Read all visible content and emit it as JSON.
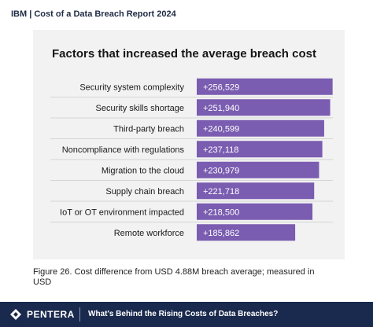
{
  "header": {
    "text": "IBM | Cost of a Data Breach Report 2024"
  },
  "chart_data": {
    "type": "bar",
    "orientation": "horizontal",
    "title": "Factors that increased the average breach cost",
    "categories": [
      "Security system complexity",
      "Security skills shortage",
      "Third-party breach",
      "Noncompliance with regulations",
      "Migration to the cloud",
      "Supply chain breach",
      "IoT or OT environment impacted",
      "Remote workforce"
    ],
    "values": [
      256529,
      251940,
      240599,
      237118,
      230979,
      221718,
      218500,
      185862
    ],
    "data_labels": [
      "+256,529",
      "+251,940",
      "+240,599",
      "+237,118",
      "+230,979",
      "+221,718",
      "+218,500",
      "+185,862"
    ],
    "xlim": [
      0,
      260000
    ],
    "grid": false,
    "bar_color": "#7a5cb0",
    "row_line_color": "#d4d4d4"
  },
  "caption": "Figure 26. Cost difference from USD 4.88M breach average; measured in USD",
  "footer": {
    "brand": "PENTERA",
    "title": "What's Behind the Rising Costs of Data Breaches?",
    "background": "#1a2a4e"
  }
}
